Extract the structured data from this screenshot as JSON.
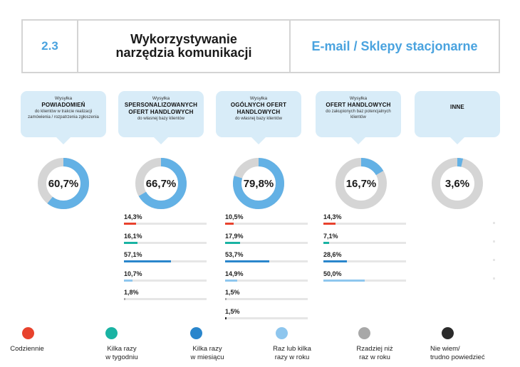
{
  "header": {
    "section_number": "2.3",
    "title_line1": "Wykorzystywanie",
    "title_line2": "narzędzia komunikacji",
    "channel": "E-mail / Sklepy stacjonarne"
  },
  "colors": {
    "codziennie": "#e8422d",
    "kilka_razy_w_tygodniu": "#1ab3a3",
    "kilka_razy_w_miesiacu": "#2a86cc",
    "raz_lub_kilka_razy_w_roku": "#8ec6ee",
    "rzadziej": "#a8a8a8",
    "nie_wiem": "#2b2b2b",
    "donut_track": "#d5d5d5",
    "donut_fill": "#63b1e5",
    "accent": "#4aa3df"
  },
  "chart_data": [
    {
      "type": "pie",
      "pre": "Wysyłka",
      "title": "POWIADOMIEŃ",
      "subtitle": "do klientów w trakcie realizacji zamówienia / rozpatrzenia zgłoszenia",
      "value": 60.7,
      "label": "60,7%",
      "breakdown": []
    },
    {
      "type": "pie",
      "pre": "Wysyłka",
      "title": "SPERSONALIZOWANYCH OFERT HANDLOWYCH",
      "subtitle": "do własnej bazy klientów",
      "value": 66.7,
      "label": "66,7%",
      "breakdown": [
        {
          "category": "Codziennie",
          "value": 14.3,
          "label": "14,3%"
        },
        {
          "category": "Kilka razy w tygodniu",
          "value": 16.1,
          "label": "16,1%"
        },
        {
          "category": "Kilka razy w miesiącu",
          "value": 57.1,
          "label": "57,1%"
        },
        {
          "category": "Raz lub kilka razy w roku",
          "value": 10.7,
          "label": "10,7%"
        },
        {
          "category": "Rzadziej niż raz w roku",
          "value": 1.8,
          "label": "1,8%"
        }
      ]
    },
    {
      "type": "pie",
      "pre": "Wysyłka",
      "title": "OGÓLNYCH OFERT HANDLOWYCH",
      "subtitle": "do własnej bazy klientów",
      "value": 79.8,
      "label": "79,8%",
      "breakdown": [
        {
          "category": "Codziennie",
          "value": 10.5,
          "label": "10,5%"
        },
        {
          "category": "Kilka razy w tygodniu",
          "value": 17.9,
          "label": "17,9%"
        },
        {
          "category": "Kilka razy w miesiącu",
          "value": 53.7,
          "label": "53,7%"
        },
        {
          "category": "Raz lub kilka razy w roku",
          "value": 14.9,
          "label": "14,9%"
        },
        {
          "category": "Rzadziej niż raz w roku",
          "value": 1.5,
          "label": "1,5%"
        },
        {
          "category": "Nie wiem/ trudno powiedzieć",
          "value": 1.5,
          "label": "1,5%"
        }
      ]
    },
    {
      "type": "pie",
      "pre": "Wysyłka",
      "title": "OFERT HANDLOWYCH",
      "subtitle": "do zakupionych baz potencjalnych klientów",
      "value": 16.7,
      "label": "16,7%",
      "breakdown": [
        {
          "category": "Codziennie",
          "value": 14.3,
          "label": "14,3%"
        },
        {
          "category": "Kilka razy w tygodniu",
          "value": 7.1,
          "label": "7,1%"
        },
        {
          "category": "Kilka razy w miesiącu",
          "value": 28.6,
          "label": "28,6%"
        },
        {
          "category": "Raz lub kilka razy w roku",
          "value": 50.0,
          "label": "50,0%"
        }
      ]
    },
    {
      "type": "pie",
      "pre": "",
      "title": "INNE",
      "subtitle": "",
      "value": 3.6,
      "label": "3,6%",
      "breakdown": []
    }
  ],
  "legend": [
    {
      "line1": "Codziennie",
      "line2": "",
      "color_key": "codziennie"
    },
    {
      "line1": "Kilka razy",
      "line2": "w tygodniu",
      "color_key": "kilka_razy_w_tygodniu"
    },
    {
      "line1": "Kilka razy",
      "line2": "w miesiącu",
      "color_key": "kilka_razy_w_miesiacu"
    },
    {
      "line1": "Raz lub kilka",
      "line2": "razy w roku",
      "color_key": "raz_lub_kilka_razy_w_roku"
    },
    {
      "line1": "Rzadziej niż",
      "line2": "raz w roku",
      "color_key": "rzadziej"
    },
    {
      "line1": "Nie wiem/",
      "line2": "trudno powiedzieć",
      "color_key": "nie_wiem"
    }
  ]
}
